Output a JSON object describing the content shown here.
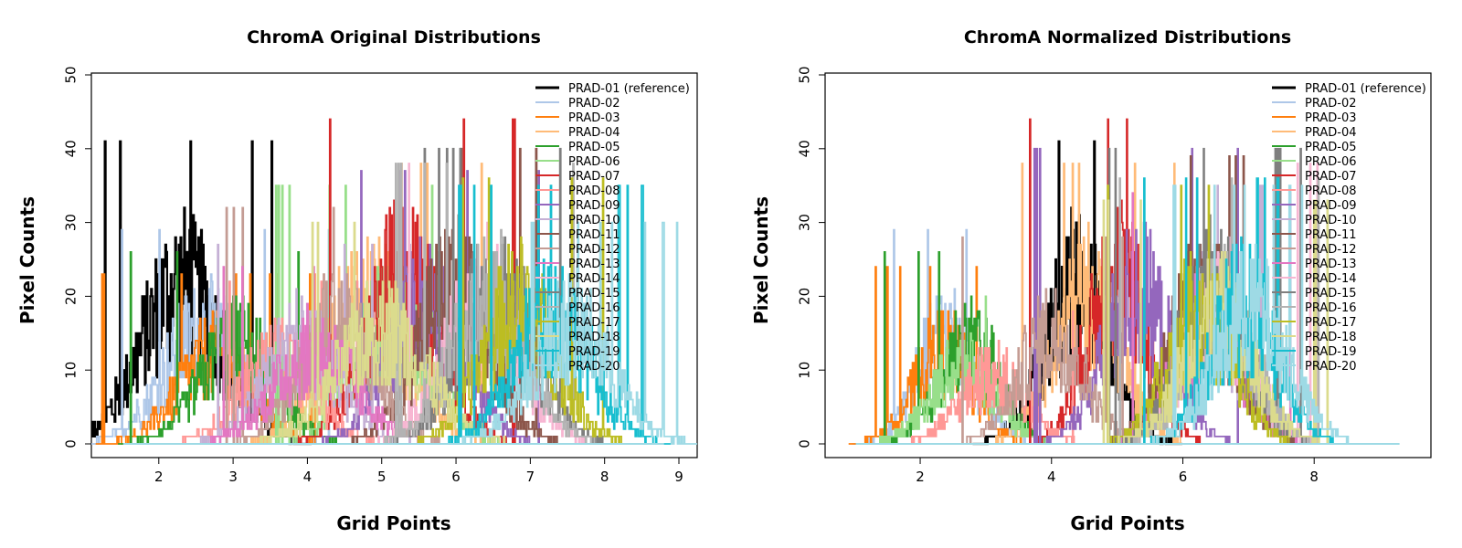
{
  "chart_data": [
    {
      "type": "line",
      "title": "ChromA Original Distributions",
      "xlabel": "Grid Points",
      "ylabel": "Pixel Counts",
      "xlim": [
        1.4,
        9.0
      ],
      "ylim": [
        0,
        50
      ],
      "xticks": [
        "2",
        "3",
        "4",
        "5",
        "6",
        "7",
        "8",
        "9"
      ],
      "yticks": [
        "0",
        "10",
        "20",
        "30",
        "40",
        "50"
      ],
      "legend_position": "top-right",
      "series": [
        {
          "name": "PRAD-01 (reference)",
          "color": "#000000",
          "center": 2.3,
          "peak": 41,
          "spread": 0.55
        },
        {
          "name": "PRAD-02",
          "color": "#aec7e8",
          "center": 2.6,
          "peak": 29,
          "spread": 0.55
        },
        {
          "name": "PRAD-03",
          "color": "#ff7f0e",
          "center": 2.75,
          "peak": 23,
          "spread": 0.5
        },
        {
          "name": "PRAD-04",
          "color": "#ffbb78",
          "center": 4.8,
          "peak": 38,
          "spread": 0.55
        },
        {
          "name": "PRAD-05",
          "color": "#2ca02c",
          "center": 3.05,
          "peak": 26,
          "spread": 0.5
        },
        {
          "name": "PRAD-06",
          "color": "#98df8a",
          "center": 5.15,
          "peak": 35,
          "spread": 0.5
        },
        {
          "name": "PRAD-07",
          "color": "#d62728",
          "center": 5.3,
          "peak": 44,
          "spread": 0.5
        },
        {
          "name": "PRAD-08",
          "color": "#ff9896",
          "center": 3.6,
          "peak": 22,
          "spread": 0.5
        },
        {
          "name": "PRAD-09",
          "color": "#9467bd",
          "center": 5.6,
          "peak": 37,
          "spread": 0.5
        },
        {
          "name": "PRAD-10",
          "color": "#c5b0d5",
          "center": 3.9,
          "peak": 27,
          "spread": 0.5
        },
        {
          "name": "PRAD-11",
          "color": "#8c564b",
          "center": 5.95,
          "peak": 40,
          "spread": 0.5
        },
        {
          "name": "PRAD-12",
          "color": "#c49c94",
          "center": 4.4,
          "peak": 32,
          "spread": 0.5
        },
        {
          "name": "PRAD-13",
          "color": "#e377c2",
          "center": 4.1,
          "peak": 24,
          "spread": 0.55
        },
        {
          "name": "PRAD-14",
          "color": "#f7b6d2",
          "center": 6.35,
          "peak": 38,
          "spread": 0.5
        },
        {
          "name": "PRAD-15",
          "color": "#7f7f7f",
          "center": 6.55,
          "peak": 40,
          "spread": 0.5
        },
        {
          "name": "PRAD-16",
          "color": "#b3b3b3",
          "center": 6.45,
          "peak": 38,
          "spread": 0.5
        },
        {
          "name": "PRAD-17",
          "color": "#bcbd22",
          "center": 6.85,
          "peak": 36,
          "spread": 0.5
        },
        {
          "name": "PRAD-18",
          "color": "#dbdb8d",
          "center": 5.0,
          "peak": 30,
          "spread": 0.6
        },
        {
          "name": "PRAD-19",
          "color": "#17becf",
          "center": 7.3,
          "peak": 35,
          "spread": 0.5
        },
        {
          "name": "PRAD-20",
          "color": "#9edae5",
          "center": 7.55,
          "peak": 30,
          "spread": 0.55
        }
      ]
    },
    {
      "type": "line",
      "title": "ChromA Normalized Distributions",
      "xlabel": "Grid Points",
      "ylabel": "Pixel Counts",
      "xlim": [
        0.9,
        9.5
      ],
      "ylim": [
        0,
        50
      ],
      "xticks": [
        "2",
        "4",
        "6",
        "8"
      ],
      "yticks": [
        "0",
        "10",
        "20",
        "30",
        "40",
        "50"
      ],
      "legend_position": "top-right",
      "series": [
        {
          "name": "PRAD-01 (reference)",
          "color": "#000000",
          "center": 4.4,
          "peak": 41,
          "spread": 0.5
        },
        {
          "name": "PRAD-02",
          "color": "#aec7e8",
          "center": 2.4,
          "peak": 29,
          "spread": 0.45
        },
        {
          "name": "PRAD-03",
          "color": "#ff7f0e",
          "center": 2.35,
          "peak": 24,
          "spread": 0.45
        },
        {
          "name": "PRAD-04",
          "color": "#ffbb78",
          "center": 4.55,
          "peak": 38,
          "spread": 0.5
        },
        {
          "name": "PRAD-05",
          "color": "#2ca02c",
          "center": 2.75,
          "peak": 26,
          "spread": 0.45
        },
        {
          "name": "PRAD-06",
          "color": "#98df8a",
          "center": 2.65,
          "peak": 20,
          "spread": 0.5
        },
        {
          "name": "PRAD-07",
          "color": "#d62728",
          "center": 5.0,
          "peak": 44,
          "spread": 0.45
        },
        {
          "name": "PRAD-08",
          "color": "#ff9896",
          "center": 3.1,
          "peak": 18,
          "spread": 0.5
        },
        {
          "name": "PRAD-09",
          "color": "#9467bd",
          "center": 5.3,
          "peak": 40,
          "spread": 0.5
        },
        {
          "name": "PRAD-10",
          "color": "#c5b0d5",
          "center": 6.35,
          "peak": 35,
          "spread": 0.5
        },
        {
          "name": "PRAD-11",
          "color": "#8c564b",
          "center": 6.3,
          "peak": 39,
          "spread": 0.5
        },
        {
          "name": "PRAD-12",
          "color": "#c49c94",
          "center": 4.0,
          "peak": 28,
          "spread": 0.5
        },
        {
          "name": "PRAD-13",
          "color": "#e377c2",
          "center": 6.4,
          "peak": 34,
          "spread": 0.5
        },
        {
          "name": "PRAD-14",
          "color": "#f7b6d2",
          "center": 6.5,
          "peak": 38,
          "spread": 0.5
        },
        {
          "name": "PRAD-15",
          "color": "#7f7f7f",
          "center": 6.45,
          "peak": 40,
          "spread": 0.5
        },
        {
          "name": "PRAD-16",
          "color": "#b3b3b3",
          "center": 6.6,
          "peak": 36,
          "spread": 0.5
        },
        {
          "name": "PRAD-17",
          "color": "#bcbd22",
          "center": 6.25,
          "peak": 35,
          "spread": 0.5
        },
        {
          "name": "PRAD-18",
          "color": "#dbdb8d",
          "center": 6.55,
          "peak": 33,
          "spread": 0.55
        },
        {
          "name": "PRAD-19",
          "color": "#17becf",
          "center": 6.9,
          "peak": 36,
          "spread": 0.5
        },
        {
          "name": "PRAD-20",
          "color": "#9edae5",
          "center": 7.05,
          "peak": 35,
          "spread": 0.55
        }
      ]
    }
  ]
}
